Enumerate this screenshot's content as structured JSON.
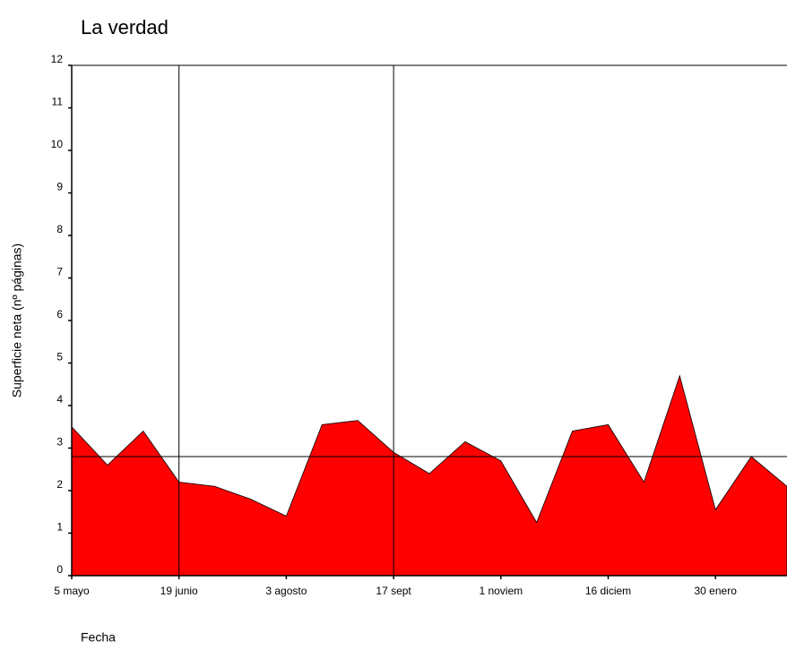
{
  "chart_data": {
    "type": "area",
    "title": "La verdad",
    "x_label": "Fecha",
    "y_label": "Superficie neta (nº páginas)",
    "categories": [
      "5 mayo",
      null,
      null,
      "19 junio",
      null,
      null,
      "3 agosto",
      null,
      null,
      "17 sept",
      null,
      null,
      "1 noviem",
      null,
      null,
      "16 diciem",
      null,
      null,
      "30 enero",
      null,
      null
    ],
    "series": [
      {
        "color": "#ff0000",
        "values": [
          3.5,
          2.6,
          3.4,
          2.2,
          2.1,
          1.8,
          1.4,
          3.55,
          3.65,
          2.9,
          2.4,
          3.15,
          2.7,
          1.25,
          3.4,
          3.55,
          2.2,
          4.7,
          1.55,
          2.8,
          2.1
        ]
      }
    ],
    "ylim": [
      0,
      12
    ],
    "yticks": [
      0,
      1,
      2,
      3,
      4,
      5,
      6,
      7,
      8,
      9,
      10,
      11,
      12
    ],
    "hline": 2.8,
    "vlines": [
      3,
      9
    ]
  }
}
